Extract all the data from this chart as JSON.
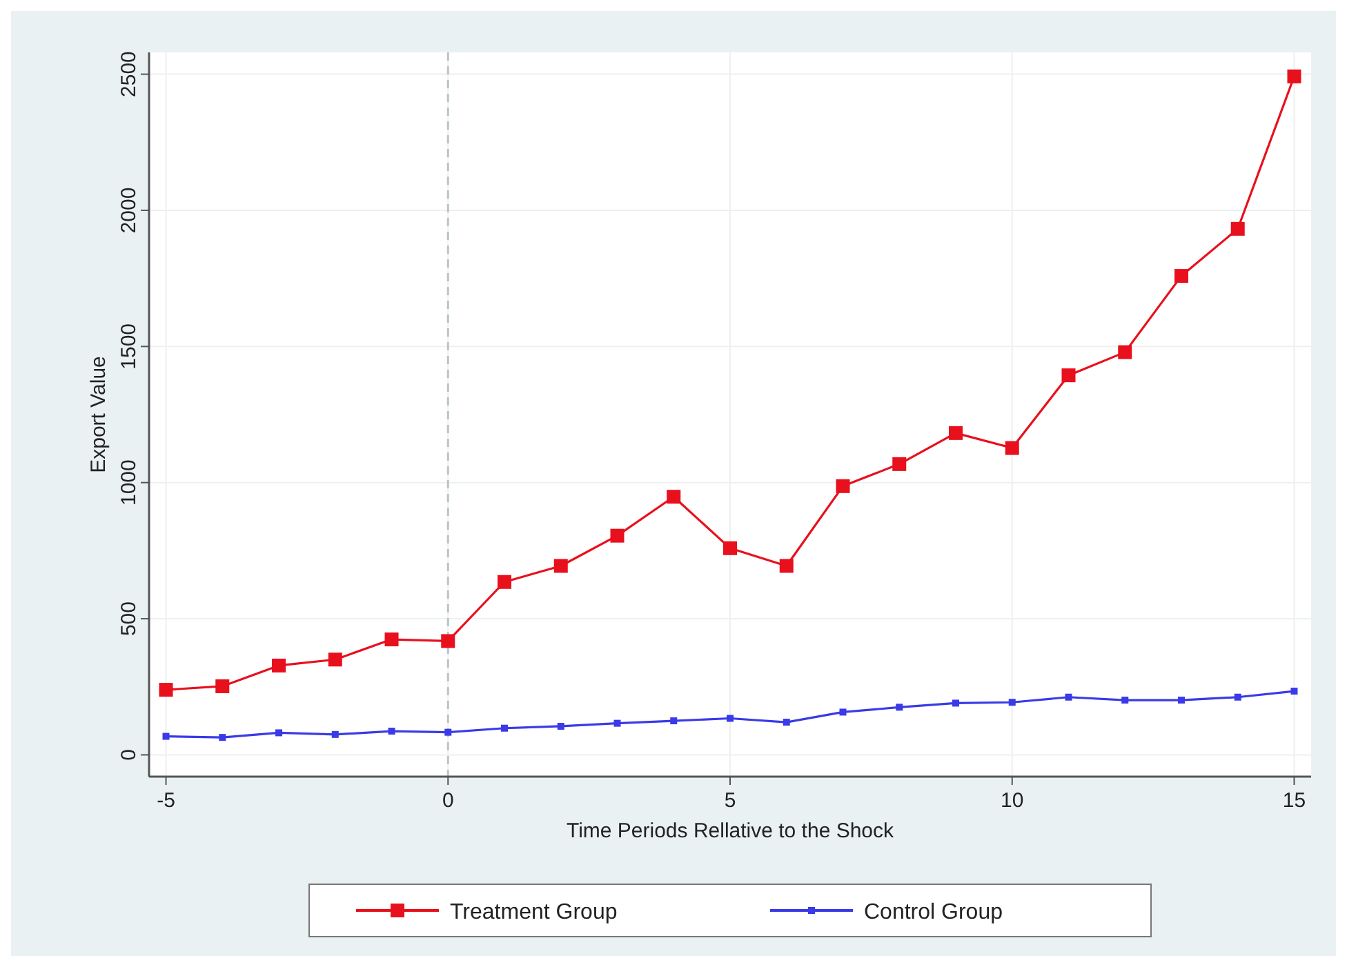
{
  "chart_data": {
    "type": "line",
    "xlabel": "Time Periods Rellative to the Shock",
    "ylabel": "Export Value",
    "x": [
      -5,
      -4,
      -3,
      -2,
      -1,
      0,
      1,
      2,
      3,
      4,
      5,
      6,
      7,
      8,
      9,
      10,
      11,
      12,
      13,
      14,
      15
    ],
    "series": [
      {
        "name": "Treatment Group",
        "color": "#e8101c",
        "values": [
          239,
          252,
          328,
          350,
          424,
          418,
          635,
          694,
          805,
          948,
          759,
          694,
          987,
          1068,
          1182,
          1127,
          1394,
          1479,
          1759,
          1932,
          2492
        ]
      },
      {
        "name": "Control Group",
        "color": "#3a3ae8",
        "values": [
          68,
          64,
          81,
          75,
          87,
          83,
          98,
          105,
          116,
          125,
          134,
          120,
          157,
          175,
          190,
          193,
          212,
          201,
          201,
          212,
          234
        ]
      }
    ],
    "xlim": [
      -5.3,
      15.3
    ],
    "xticks": [
      -5,
      0,
      5,
      10,
      15
    ],
    "ylim": [
      -80,
      2580
    ],
    "yticks": [
      0,
      500,
      1000,
      1500,
      2000,
      2500
    ],
    "grid": true,
    "legend": "bottom",
    "marker": "square",
    "line_style": "solid",
    "ref_lines": [
      {
        "axis": "x",
        "value": 0,
        "color": "#b8c4c8",
        "line_style": "dashed"
      }
    ]
  }
}
